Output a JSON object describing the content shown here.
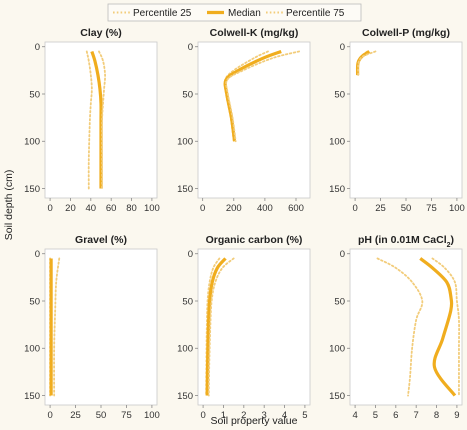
{
  "chart_data": {
    "type": "line",
    "xlabel": "Soil property value",
    "ylabel": "Soil depth (cm)",
    "legend": {
      "placement": "top-center",
      "entries": [
        {
          "name": "Percentile 25",
          "style": "dotted"
        },
        {
          "name": "Median",
          "style": "solid"
        },
        {
          "name": "Percentile 75",
          "style": "dotted"
        }
      ]
    },
    "colors": {
      "median": "#f0ad1e",
      "percentile": "#f2cc7a",
      "background": "#fbf8ef"
    },
    "grid": false,
    "panels": [
      {
        "title": "Clay (%)",
        "title_sub": "",
        "xlim": [
          -5,
          105
        ],
        "ylim": [
          160,
          -5
        ],
        "xticks": [
          "0",
          "20",
          "40",
          "60",
          "80",
          "100"
        ],
        "yticks": [
          "0",
          "50",
          "100",
          "150"
        ],
        "series": [
          {
            "name": "Percentile 25",
            "x": [
              36,
              38,
              40,
              41,
              40,
              39,
              38,
              38
            ],
            "y": [
              5,
              15,
              30,
              45,
              60,
              80,
              120,
              150
            ]
          },
          {
            "name": "Median",
            "x": [
              41,
              44,
              47,
              49,
              50,
              50,
              50,
              50
            ],
            "y": [
              5,
              15,
              30,
              45,
              60,
              80,
              120,
              150
            ]
          },
          {
            "name": "Percentile 75",
            "x": [
              48,
              52,
              54,
              53,
              52,
              51,
              51,
              51
            ],
            "y": [
              5,
              15,
              30,
              45,
              60,
              80,
              120,
              150
            ]
          }
        ]
      },
      {
        "title": "Colwell-K (mg/kg)",
        "title_sub": "",
        "xlim": [
          -30,
          690
        ],
        "ylim": [
          160,
          -5
        ],
        "xticks": [
          "0",
          "200",
          "400",
          "600"
        ],
        "yticks": [
          "0",
          "50",
          "100",
          "150"
        ],
        "series": [
          {
            "name": "Percentile 25",
            "x": [
              420,
              330,
              200,
              145,
              150,
              180,
              200
            ],
            "y": [
              5,
              12,
              25,
              35,
              50,
              75,
              100
            ]
          },
          {
            "name": "Median",
            "x": [
              505,
              390,
              230,
              150,
              155,
              185,
              205
            ],
            "y": [
              5,
              12,
              25,
              35,
              50,
              75,
              100
            ]
          },
          {
            "name": "Percentile 75",
            "x": [
              620,
              450,
              260,
              158,
              162,
              192,
              212
            ],
            "y": [
              5,
              12,
              25,
              35,
              50,
              75,
              100
            ]
          }
        ]
      },
      {
        "title": "Colwell-P (mg/kg)",
        "title_sub": "",
        "xlim": [
          -5,
          105
        ],
        "ylim": [
          160,
          -5
        ],
        "xticks": [
          "0",
          "25",
          "50",
          "75",
          "100"
        ],
        "yticks": [
          "0",
          "50",
          "100",
          "150"
        ],
        "series": [
          {
            "name": "Percentile 25",
            "x": [
              12,
              6,
              3,
              2,
              2
            ],
            "y": [
              5,
              10,
              15,
              20,
              30
            ]
          },
          {
            "name": "Median",
            "x": [
              14,
              7,
              3.5,
              2.5,
              2.5
            ],
            "y": [
              5,
              10,
              15,
              20,
              30
            ]
          },
          {
            "name": "Percentile 75",
            "x": [
              20,
              8,
              4,
              3,
              3
            ],
            "y": [
              5,
              10,
              15,
              20,
              30
            ]
          }
        ]
      },
      {
        "title": "Gravel (%)",
        "title_sub": "",
        "xlim": [
          -5,
          105
        ],
        "ylim": [
          160,
          -5
        ],
        "xticks": [
          "0",
          "25",
          "50",
          "75",
          "100"
        ],
        "yticks": [
          "0",
          "50",
          "100",
          "150"
        ],
        "series": [
          {
            "name": "Percentile 25",
            "x": [
              0,
              0,
              0,
              0,
              0
            ],
            "y": [
              5,
              30,
              60,
              100,
              150
            ]
          },
          {
            "name": "Median",
            "x": [
              1,
              1,
              1,
              1,
              1
            ],
            "y": [
              5,
              30,
              60,
              100,
              150
            ]
          },
          {
            "name": "Percentile 75",
            "x": [
              9,
              6,
              5,
              4,
              4
            ],
            "y": [
              5,
              30,
              60,
              100,
              150
            ]
          }
        ]
      },
      {
        "title": "Organic carbon (%)",
        "title_sub": "",
        "xlim": [
          -0.25,
          5.25
        ],
        "ylim": [
          160,
          -5
        ],
        "xticks": [
          "0",
          "1",
          "2",
          "3",
          "4",
          "5"
        ],
        "yticks": [
          "0",
          "50",
          "100",
          "150"
        ],
        "series": [
          {
            "name": "Percentile 25",
            "x": [
              0.8,
              0.5,
              0.32,
              0.22,
              0.18,
              0.16,
              0.15
            ],
            "y": [
              5,
              15,
              30,
              50,
              80,
              120,
              150
            ]
          },
          {
            "name": "Median",
            "x": [
              1.1,
              0.7,
              0.45,
              0.32,
              0.26,
              0.22,
              0.2
            ],
            "y": [
              5,
              15,
              30,
              50,
              80,
              120,
              150
            ]
          },
          {
            "name": "Percentile 75",
            "x": [
              1.5,
              0.95,
              0.6,
              0.42,
              0.35,
              0.3,
              0.28
            ],
            "y": [
              5,
              15,
              30,
              50,
              80,
              120,
              150
            ]
          }
        ]
      },
      {
        "title": "pH (in 0.01M CaCl",
        "title_sub": "2",
        "title_end": ")",
        "xlim": [
          3.75,
          9.25
        ],
        "ylim": [
          160,
          -5
        ],
        "xticks": [
          "4",
          "5",
          "6",
          "7",
          "8",
          "9"
        ],
        "yticks": [
          "0",
          "50",
          "100",
          "150"
        ],
        "series": [
          {
            "name": "Percentile 25",
            "x": [
              5.1,
              6.0,
              6.8,
              7.3,
              7.0,
              6.8,
              6.7,
              6.6
            ],
            "y": [
              5,
              15,
              30,
              50,
              70,
              100,
              130,
              150
            ]
          },
          {
            "name": "Median",
            "x": [
              7.2,
              7.8,
              8.5,
              8.7,
              8.7,
              8.3,
              7.9,
              8.9
            ],
            "y": [
              5,
              15,
              30,
              45,
              60,
              90,
              120,
              150
            ]
          },
          {
            "name": "Percentile 75",
            "x": [
              7.8,
              8.4,
              8.9,
              9.0,
              9.1,
              9.1,
              9.1,
              9.1
            ],
            "y": [
              5,
              15,
              30,
              50,
              70,
              100,
              130,
              150
            ]
          }
        ]
      }
    ]
  }
}
